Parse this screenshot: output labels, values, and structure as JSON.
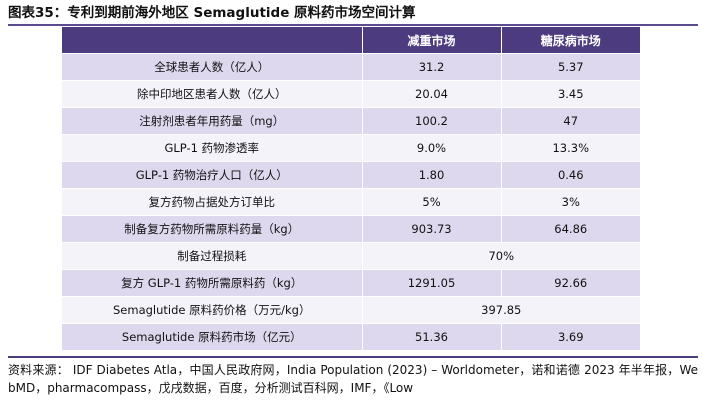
{
  "title": "图表35：专利到期前海外地区 Semaglutide 原料药市场空间计算",
  "table": {
    "headers": [
      "",
      "减重市场",
      "糖尿病市场"
    ],
    "rows": [
      {
        "label": "全球患者人数（亿人）",
        "weight": "31.2",
        "diabetes": "5.37"
      },
      {
        "label": "除中印地区患者人数（亿人）",
        "weight": "20.04",
        "diabetes": "3.45"
      },
      {
        "label": "注射剂患者年用药量（mg）",
        "weight": "100.2",
        "diabetes": "47"
      },
      {
        "label": "GLP-1 药物渗透率",
        "weight": "9.0%",
        "diabetes": "13.3%"
      },
      {
        "label": "GLP-1 药物治疗人口（亿人）",
        "weight": "1.80",
        "diabetes": "0.46"
      },
      {
        "label": "复方药物占据处方订单比",
        "weight": "5%",
        "diabetes": "3%"
      },
      {
        "label": "制备复方药物所需原料药量（kg）",
        "weight": "903.73",
        "diabetes": "64.86"
      }
    ],
    "merged_loss": {
      "label": "制备过程损耗",
      "value": "70%"
    },
    "rows_after": [
      {
        "label": "复方 GLP-1 药物所需原料药（kg）",
        "weight": "1291.05",
        "diabetes": "92.66"
      }
    ],
    "merged_price": {
      "label": "Semaglutide 原料药价格（万元/kg）",
      "value": "397.85"
    },
    "final_row": {
      "label": "Semaglutide 原料药市场（亿元）",
      "weight": "51.36",
      "diabetes": "3.69"
    }
  },
  "source": "资料来源： IDF Diabetes Atla，中国人民政府网，India Population (2023) – Worldometer，诺和诺德 2023 年半年报，WebMD，pharmacompass，戊戌数据，百度，分析测试百科网，IMF，《Low"
}
